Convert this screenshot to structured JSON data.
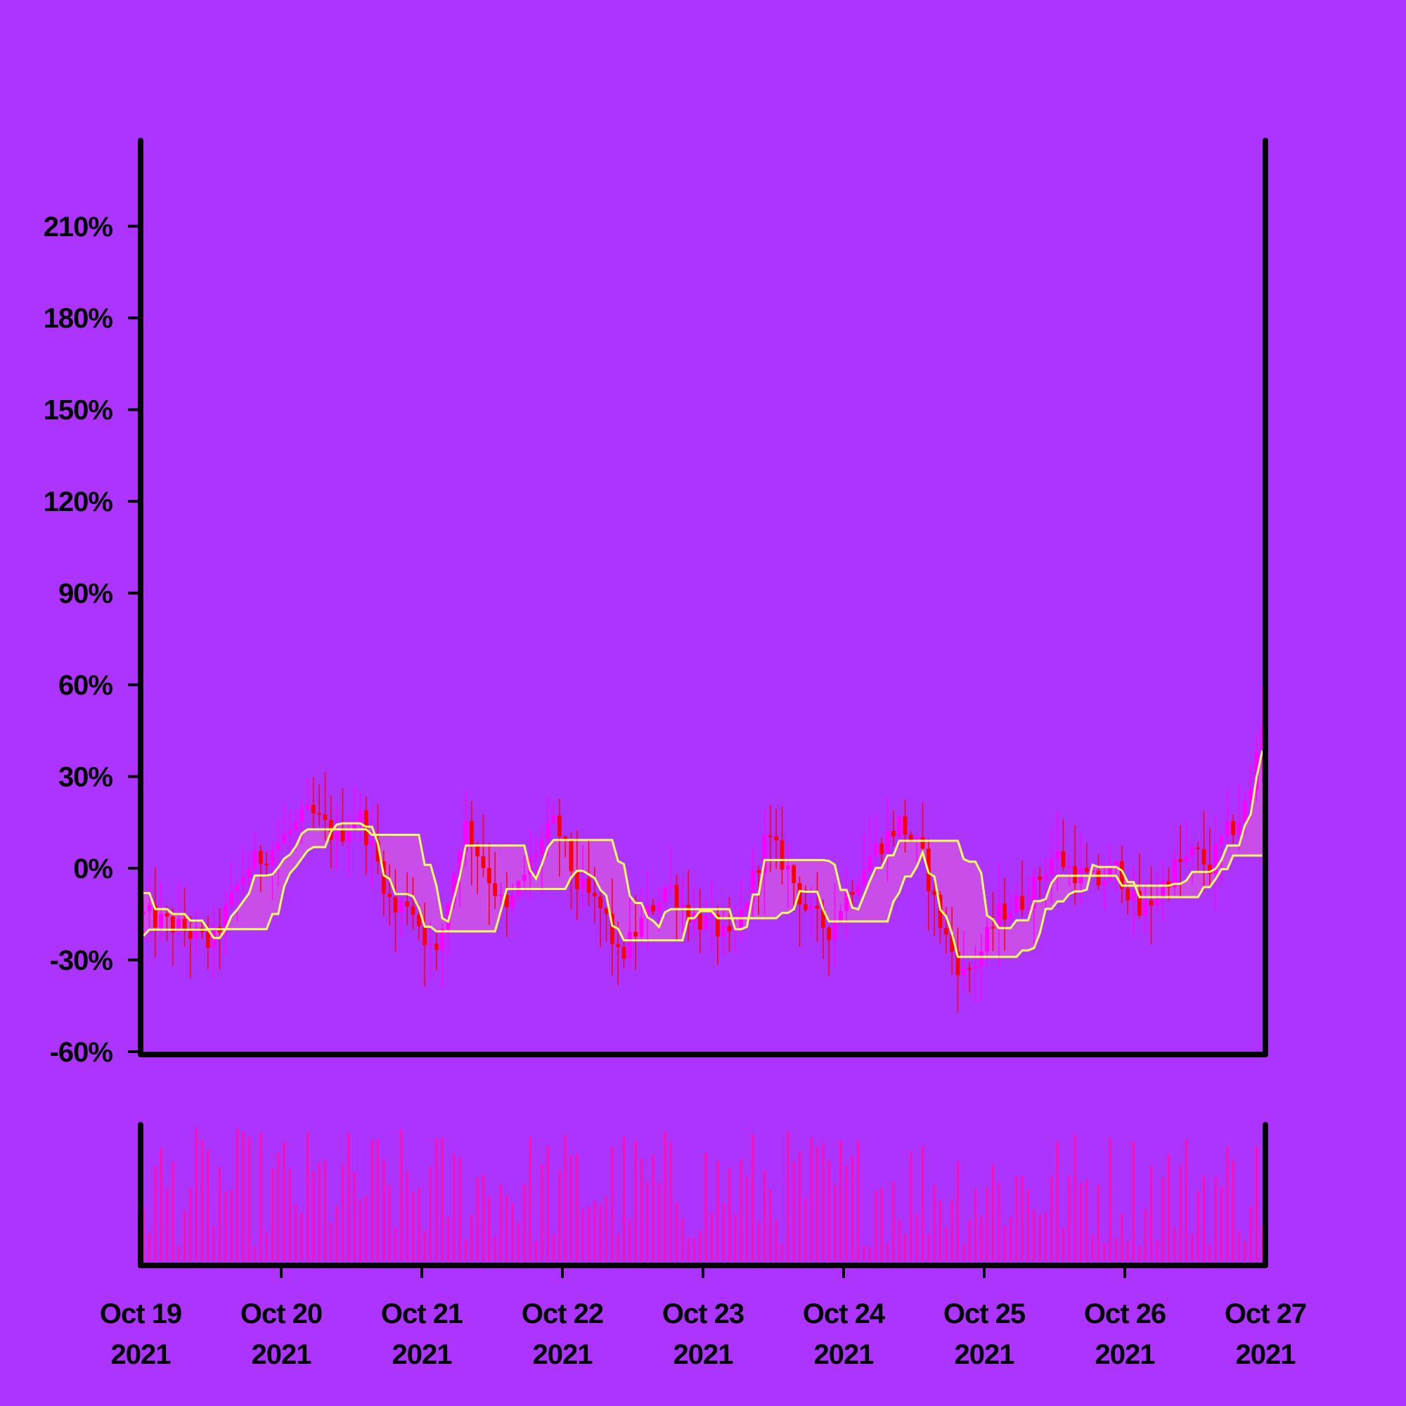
{
  "chart_data": {
    "type": "candlestick",
    "y_ticks": [
      "-60%",
      "-30%",
      "0%",
      "30%",
      "60%",
      "90%",
      "120%",
      "150%",
      "180%",
      "210%"
    ],
    "y_tick_values": [
      -60,
      -30,
      0,
      30,
      60,
      90,
      120,
      150,
      180,
      210
    ],
    "ylim": [
      -60,
      238
    ],
    "x_ticks": [
      {
        "line1": "Oct 19",
        "line2": "2021"
      },
      {
        "line1": "Oct 20",
        "line2": "2021"
      },
      {
        "line1": "Oct 21",
        "line2": "2021"
      },
      {
        "line1": "Oct 22",
        "line2": "2021"
      },
      {
        "line1": "Oct 23",
        "line2": "2021"
      },
      {
        "line1": "Oct 24",
        "line2": "2021"
      },
      {
        "line1": "Oct 25",
        "line2": "2021"
      },
      {
        "line1": "Oct 26",
        "line2": "2021"
      },
      {
        "line1": "Oct 27",
        "line2": "2021"
      }
    ],
    "x_range_days": [
      0,
      8
    ],
    "candle_interval_hours": 1,
    "close_path_pct": [
      [
        0,
        -15
      ],
      [
        0.3,
        -20
      ],
      [
        0.5,
        -25
      ],
      [
        0.6,
        -15
      ],
      [
        0.75,
        0
      ],
      [
        0.9,
        5
      ],
      [
        1.2,
        18
      ],
      [
        1.4,
        10
      ],
      [
        1.55,
        18
      ],
      [
        1.7,
        0
      ],
      [
        1.8,
        -15
      ],
      [
        1.9,
        -10
      ],
      [
        2.0,
        -20
      ],
      [
        2.1,
        -30
      ],
      [
        2.3,
        15
      ],
      [
        2.5,
        -5
      ],
      [
        2.6,
        -15
      ],
      [
        2.8,
        5
      ],
      [
        2.95,
        15
      ],
      [
        3.1,
        -5
      ],
      [
        3.3,
        -15
      ],
      [
        3.4,
        -30
      ],
      [
        3.6,
        -15
      ],
      [
        3.75,
        -5
      ],
      [
        3.9,
        -15
      ],
      [
        4.1,
        -20
      ],
      [
        4.2,
        -25
      ],
      [
        4.45,
        10
      ],
      [
        4.6,
        0
      ],
      [
        4.75,
        -15
      ],
      [
        4.9,
        -20
      ],
      [
        5.0,
        -10
      ],
      [
        5.2,
        5
      ],
      [
        5.4,
        15
      ],
      [
        5.55,
        5
      ],
      [
        5.7,
        -20
      ],
      [
        5.85,
        -35
      ],
      [
        5.95,
        -30
      ],
      [
        6.1,
        -15
      ],
      [
        6.3,
        -10
      ],
      [
        6.5,
        5
      ],
      [
        6.6,
        0
      ],
      [
        6.8,
        -5
      ],
      [
        6.95,
        0
      ],
      [
        7.1,
        -15
      ],
      [
        7.2,
        -10
      ],
      [
        7.35,
        0
      ],
      [
        7.5,
        5
      ],
      [
        7.6,
        0
      ],
      [
        7.7,
        10
      ],
      [
        7.8,
        15
      ],
      [
        7.9,
        25
      ],
      [
        7.97,
        50
      ],
      [
        8.0,
        45
      ]
    ],
    "candle_colors": {
      "up": "#ff00ff",
      "down": "#ff0000"
    },
    "band_line_color": "#ffff5c",
    "volume_color": "#ff0fb0",
    "background": "#ad33ff"
  }
}
